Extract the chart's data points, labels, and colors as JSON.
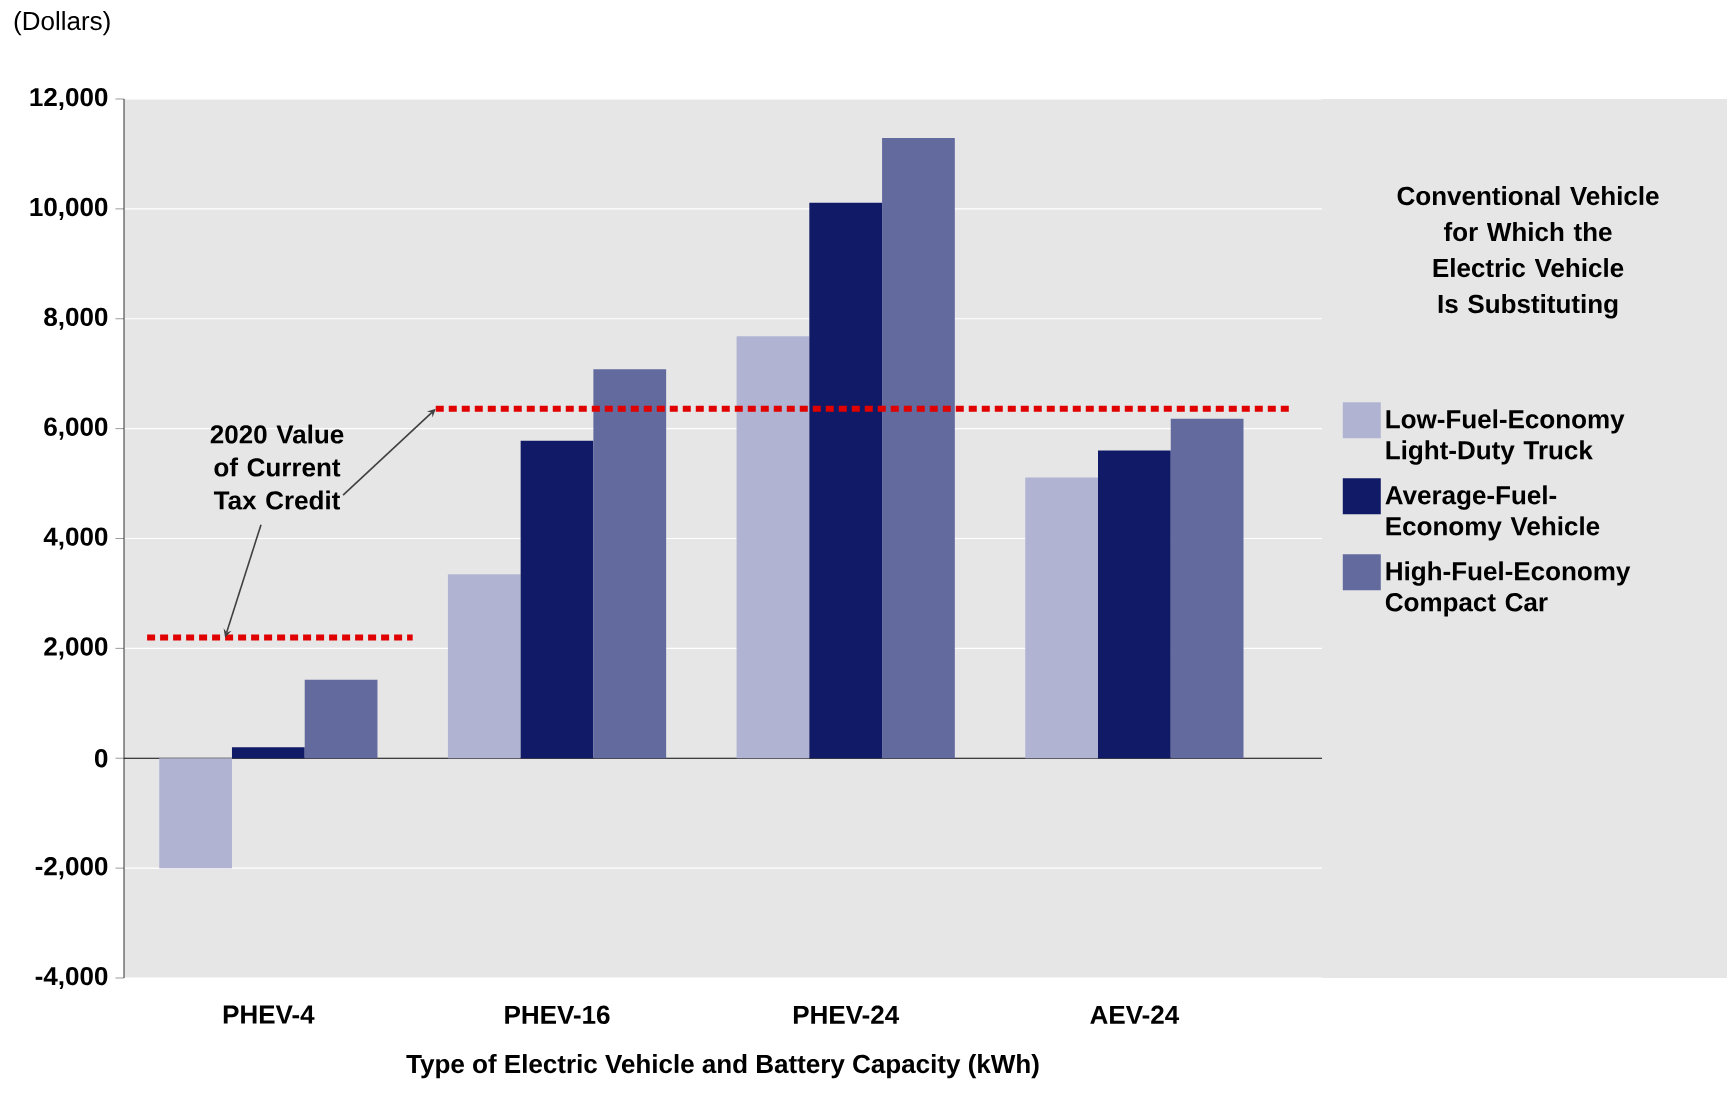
{
  "chart_data": {
    "type": "bar",
    "ylabel": "(Dollars)",
    "xlabel": "Type of Electric Vehicle and Battery Capacity (kWh)",
    "legend_title": "Conventional Vehicle for Which the Electric Vehicle Is Substituting",
    "categories": [
      "PHEV-4",
      "PHEV-16",
      "PHEV-24",
      "AEV-24"
    ],
    "series": [
      {
        "name": "Low-Fuel-Economy Light-Duty Truck",
        "color": "#b0b4d2",
        "values": [
          -2000,
          3350,
          7680,
          5110
        ]
      },
      {
        "name": "Average-Fuel-Economy Vehicle",
        "color": "#111a66",
        "values": [
          200,
          5780,
          10110,
          5600
        ]
      },
      {
        "name": "High-Fuel-Economy Compact Car",
        "color": "#626a9e",
        "values": [
          1430,
          7080,
          11290,
          6180
        ]
      }
    ],
    "ref_lines": [
      {
        "axis": "y",
        "value": 2200,
        "label": "2020 Value of Current Tax Credit",
        "color": "#e00000",
        "line_style": "dotted"
      },
      {
        "axis": "y",
        "value": 6360,
        "color": "#e00000",
        "line_style": "dotted"
      }
    ],
    "ylim": [
      -4000,
      12000
    ],
    "yticks": [
      {
        "value": -4000,
        "label": "-4,000"
      },
      {
        "value": -2000,
        "label": "-2,000"
      },
      0,
      {
        "value": 2000,
        "label": "2,000"
      },
      {
        "value": 4000,
        "label": "4,000"
      },
      {
        "value": 6000,
        "label": "6,000"
      },
      {
        "value": 8000,
        "label": "8,000"
      },
      {
        "value": 10000,
        "label": "10,000"
      },
      {
        "value": 12000,
        "label": "12,000"
      }
    ],
    "grid": "y",
    "legend": "right"
  }
}
